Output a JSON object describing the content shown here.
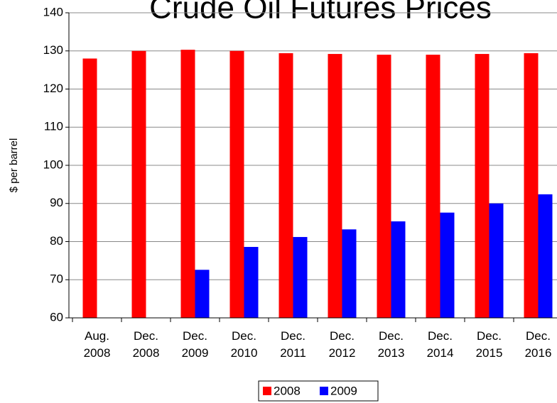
{
  "chart_data": {
    "type": "bar",
    "title": "Crude Oil Futures Prices",
    "y_label": "$ per barrel",
    "categories": [
      "Aug. 2008",
      "Dec. 2008",
      "Dec. 2009",
      "Dec. 2010",
      "Dec. 2011",
      "Dec. 2012",
      "Dec. 2013",
      "Dec. 2014",
      "Dec. 2015",
      "Dec. 2016"
    ],
    "series": [
      {
        "name": "2008",
        "color": "#ff0000",
        "values": [
          128,
          130,
          130.3,
          130,
          129.4,
          129.2,
          129,
          129,
          129.2,
          129.4
        ]
      },
      {
        "name": "2009",
        "color": "#0000ff",
        "values": [
          null,
          null,
          72.6,
          78.6,
          81.2,
          83.2,
          85.3,
          87.6,
          90,
          92.4
        ]
      }
    ],
    "ylim": [
      60,
      140
    ],
    "yticks": [
      60,
      70,
      80,
      90,
      100,
      110,
      120,
      130,
      140
    ],
    "grid": true,
    "legend": "bottom"
  }
}
